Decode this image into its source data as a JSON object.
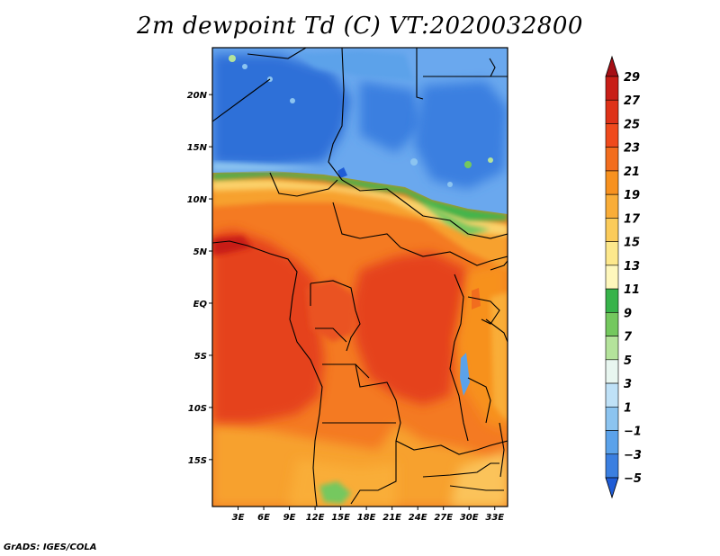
{
  "title": "2m dewpoint Td (C) VT:2020032800",
  "credit": "GrADS: IGES/COLA",
  "map": {
    "lat_range": [
      -19.5,
      24.5
    ],
    "lon_range": [
      0,
      34.5
    ],
    "y_ticks": [
      {
        "lat": 20,
        "label": "20N"
      },
      {
        "lat": 15,
        "label": "15N"
      },
      {
        "lat": 10,
        "label": "10N"
      },
      {
        "lat": 5,
        "label": "5N"
      },
      {
        "lat": 0,
        "label": "EQ"
      },
      {
        "lat": -5,
        "label": "5S"
      },
      {
        "lat": -10,
        "label": "10S"
      },
      {
        "lat": -15,
        "label": "15S"
      }
    ],
    "x_ticks": [
      {
        "lon": 3,
        "label": "3E"
      },
      {
        "lon": 6,
        "label": "6E"
      },
      {
        "lon": 9,
        "label": "9E"
      },
      {
        "lon": 12,
        "label": "12E"
      },
      {
        "lon": 15,
        "label": "15E"
      },
      {
        "lon": 18,
        "label": "18E"
      },
      {
        "lon": 21,
        "label": "21E"
      },
      {
        "lon": 24,
        "label": "24E"
      },
      {
        "lon": 27,
        "label": "27E"
      },
      {
        "lon": 30,
        "label": "30E"
      },
      {
        "lon": 33,
        "label": "33E"
      }
    ]
  },
  "colorbar": {
    "labels": [
      "29",
      "27",
      "25",
      "23",
      "21",
      "19",
      "17",
      "15",
      "13",
      "11",
      "9",
      "7",
      "5",
      "3",
      "1",
      "−1",
      "−3",
      "−5"
    ],
    "colors": [
      "#a50f15",
      "#c81e17",
      "#de3218",
      "#ef4a1c",
      "#f26d1e",
      "#f7911f",
      "#f9ad38",
      "#fbcb5a",
      "#fde88c",
      "#fef7bc",
      "#37b34a",
      "#74c85e",
      "#b4e39b",
      "#e8f6f0",
      "#bfe1f7",
      "#8cc4f0",
      "#5ba2ea",
      "#3b7fe0",
      "#1f5cd6"
    ]
  },
  "field_colors": {
    "north": "#2f6fd8",
    "north_light": "#6aa8ee",
    "sahel_green": "#43b54c",
    "tropic_red": "#e5421d",
    "orange": "#f47a22",
    "light_orange": "#f7a12d",
    "pale": "#fbd16a"
  }
}
